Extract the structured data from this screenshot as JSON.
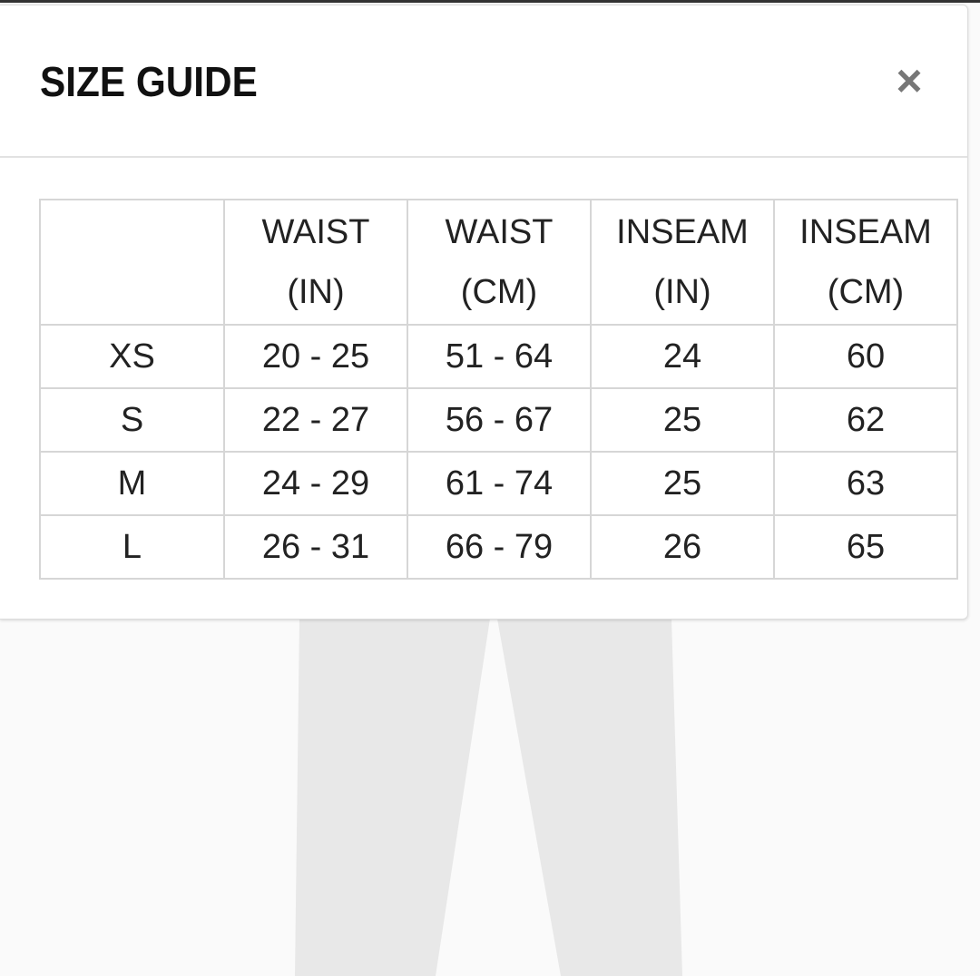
{
  "modal": {
    "title": "SIZE GUIDE",
    "close_icon": "close-icon",
    "close_label": "×"
  },
  "table": {
    "headers": [
      {
        "line1": "",
        "line2": ""
      },
      {
        "line1": "WAIST",
        "line2": "(IN)"
      },
      {
        "line1": "WAIST",
        "line2": "(CM)"
      },
      {
        "line1": "INSEAM",
        "line2": "(IN)"
      },
      {
        "line1": "INSEAM",
        "line2": "(CM)"
      }
    ],
    "rows": [
      [
        "XS",
        "20 - 25",
        "51 - 64",
        "24",
        "60"
      ],
      [
        "S",
        "22 - 27",
        "56 - 67",
        "25",
        "62"
      ],
      [
        "M",
        "24 - 29",
        "61 - 74",
        "25",
        "63"
      ],
      [
        "L",
        "26 - 31",
        "66 - 79",
        "26",
        "65"
      ]
    ]
  },
  "colors": {
    "pants": "#e8e8e8",
    "background": "#fafafa",
    "close": "#777777"
  }
}
